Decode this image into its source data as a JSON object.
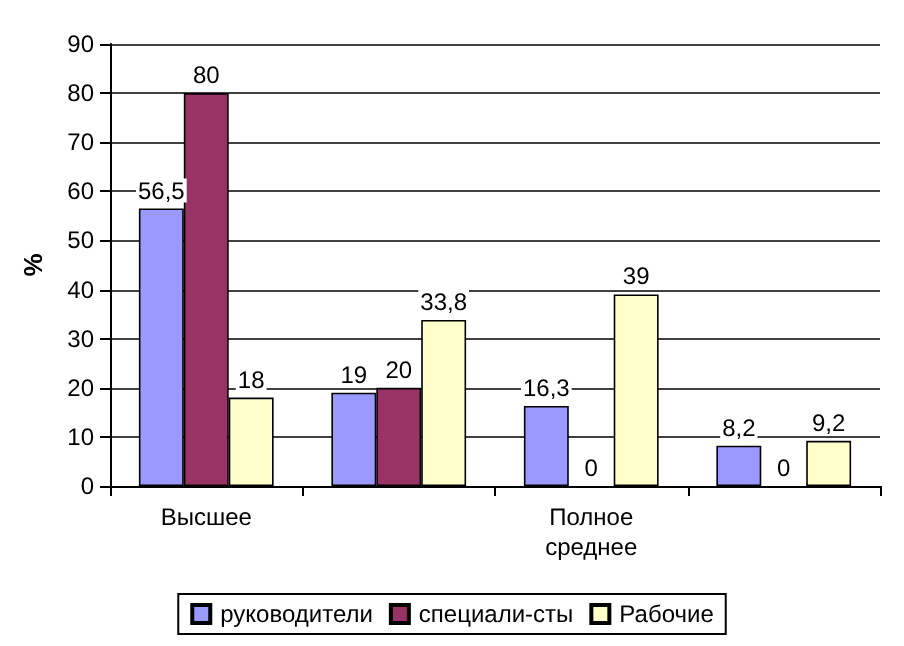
{
  "chart_data": {
    "type": "bar",
    "ylabel": "%",
    "categories": [
      "Высшее",
      null,
      "Полное среднее",
      null
    ],
    "series": [
      {
        "name": "руководители",
        "color": "#9999ff",
        "values": [
          56.5,
          19,
          16.3,
          8.2
        ],
        "value_labels": [
          "56,5",
          "19",
          "16,3",
          "8,2"
        ]
      },
      {
        "name": "специали-сты",
        "color": "#993366",
        "values": [
          80,
          20,
          0,
          0
        ],
        "value_labels": [
          "80",
          "20",
          "0",
          "0"
        ]
      },
      {
        "name": "Рабочие",
        "color": "#ffffcc",
        "values": [
          18,
          33.8,
          39,
          9.2
        ],
        "value_labels": [
          "18",
          "33,8",
          "39",
          "9,2"
        ]
      }
    ],
    "ylim": [
      0,
      90
    ],
    "yticks": [
      0,
      10,
      20,
      30,
      40,
      50,
      60,
      70,
      80,
      90
    ],
    "grid": "y",
    "legend": "bottom"
  }
}
